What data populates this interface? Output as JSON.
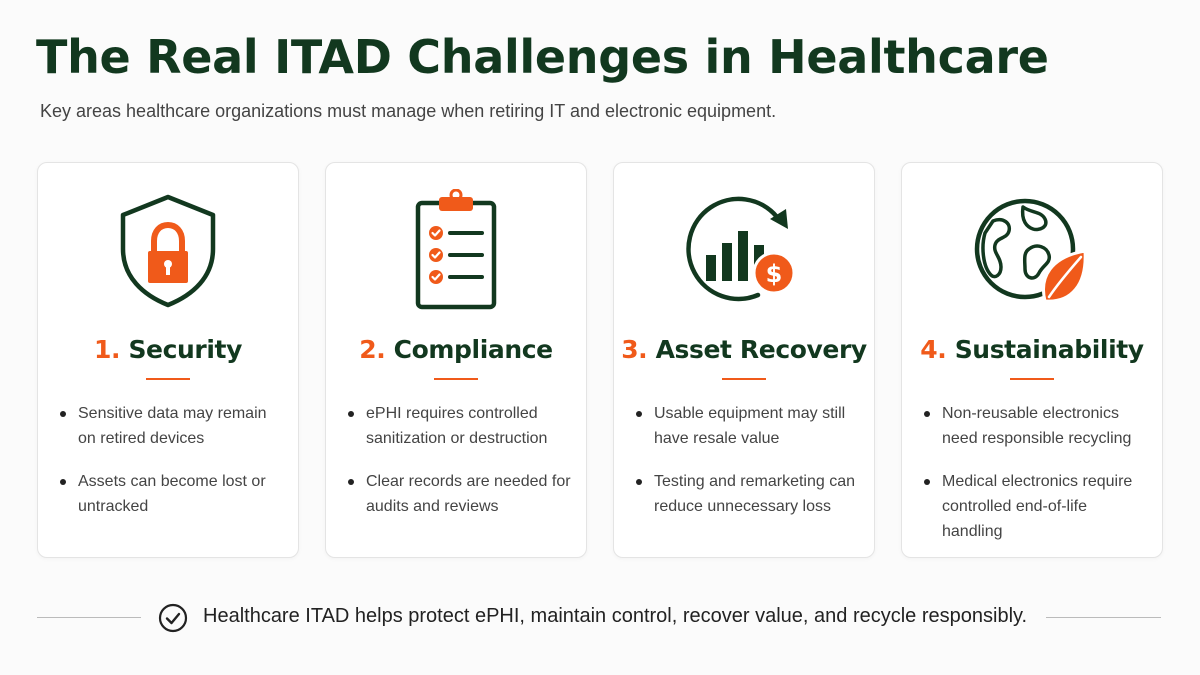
{
  "header": {
    "title": "The Real ITAD Challenges in Healthcare",
    "subtitle": "Key areas healthcare organizations must manage when retiring IT and electronic equipment."
  },
  "colors": {
    "brand_green": "#12381f",
    "accent_orange": "#f05a1a"
  },
  "cards": [
    {
      "number": "1.",
      "title": "Security",
      "icon": "shield-lock-icon",
      "bullets": [
        "Sensitive data may remain on retired devices",
        "Assets can become lost or untracked"
      ]
    },
    {
      "number": "2.",
      "title": "Compliance",
      "icon": "clipboard-checklist-icon",
      "bullets": [
        "ePHI requires controlled sanitization or destruction",
        "Clear records are needed for audits and reviews"
      ]
    },
    {
      "number": "3.",
      "title": "Asset Recovery",
      "icon": "bar-chart-dollar-icon",
      "bullets": [
        "Usable equipment may still have resale value",
        "Testing and remarketing can reduce unnecessary loss"
      ]
    },
    {
      "number": "4.",
      "title": "Sustainability",
      "icon": "globe-leaf-icon",
      "bullets": [
        "Non-reusable electronics need responsible recycling",
        "Medical electronics require controlled end-of-life handling"
      ]
    }
  ],
  "footer": {
    "icon": "check-circle-icon",
    "text": "Healthcare ITAD helps protect ePHI, maintain control, recover value, and recycle responsibly."
  }
}
